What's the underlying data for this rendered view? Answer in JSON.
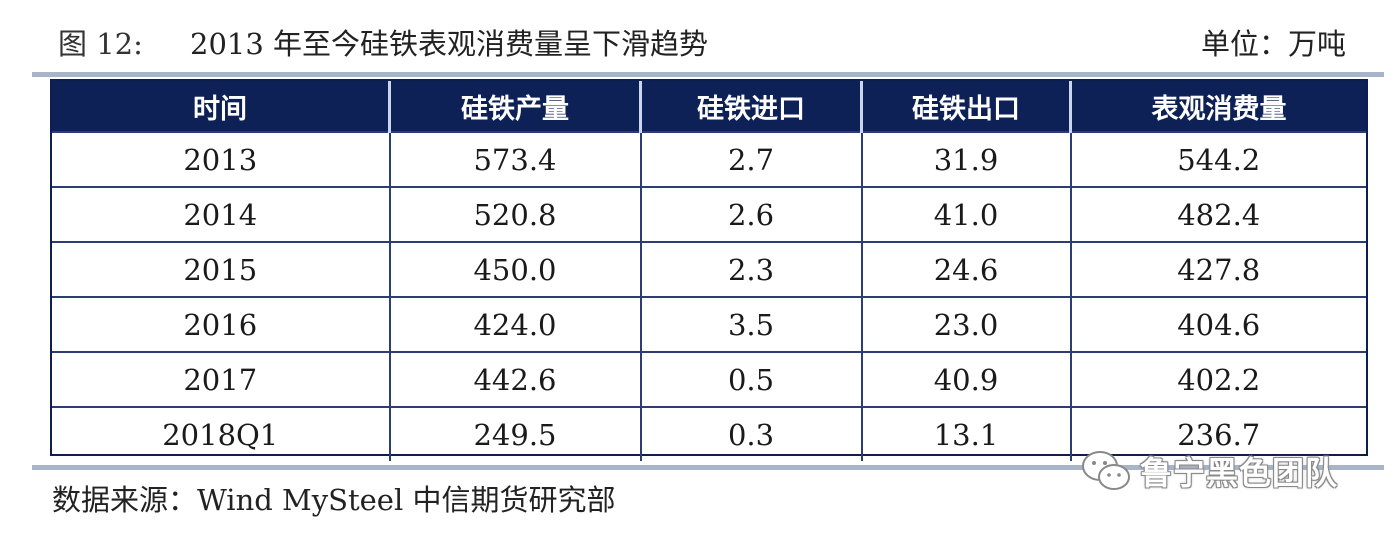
{
  "header": {
    "figure_label": "图 12:",
    "title": "2013 年至今硅铁表观消费量呈下滑趋势",
    "unit": "单位：万吨"
  },
  "table": {
    "columns": [
      "时间",
      "硅铁产量",
      "硅铁进口",
      "硅铁出口",
      "表观消费量"
    ],
    "rows": [
      [
        "2013",
        "573.4",
        "2.7",
        "31.9",
        "544.2"
      ],
      [
        "2014",
        "520.8",
        "2.6",
        "41.0",
        "482.4"
      ],
      [
        "2015",
        "450.0",
        "2.3",
        "24.6",
        "427.8"
      ],
      [
        "2016",
        "424.0",
        "3.5",
        "23.0",
        "404.6"
      ],
      [
        "2017",
        "442.6",
        "0.5",
        "40.9",
        "402.2"
      ],
      [
        "2018Q1",
        "249.5",
        "0.3",
        "13.1",
        "236.7"
      ]
    ]
  },
  "footer": {
    "source": "数据来源：Wind MySteel 中信期货研究部"
  },
  "watermark": {
    "icon": "wechat-icon",
    "text": "鲁宁黑色团队"
  }
}
